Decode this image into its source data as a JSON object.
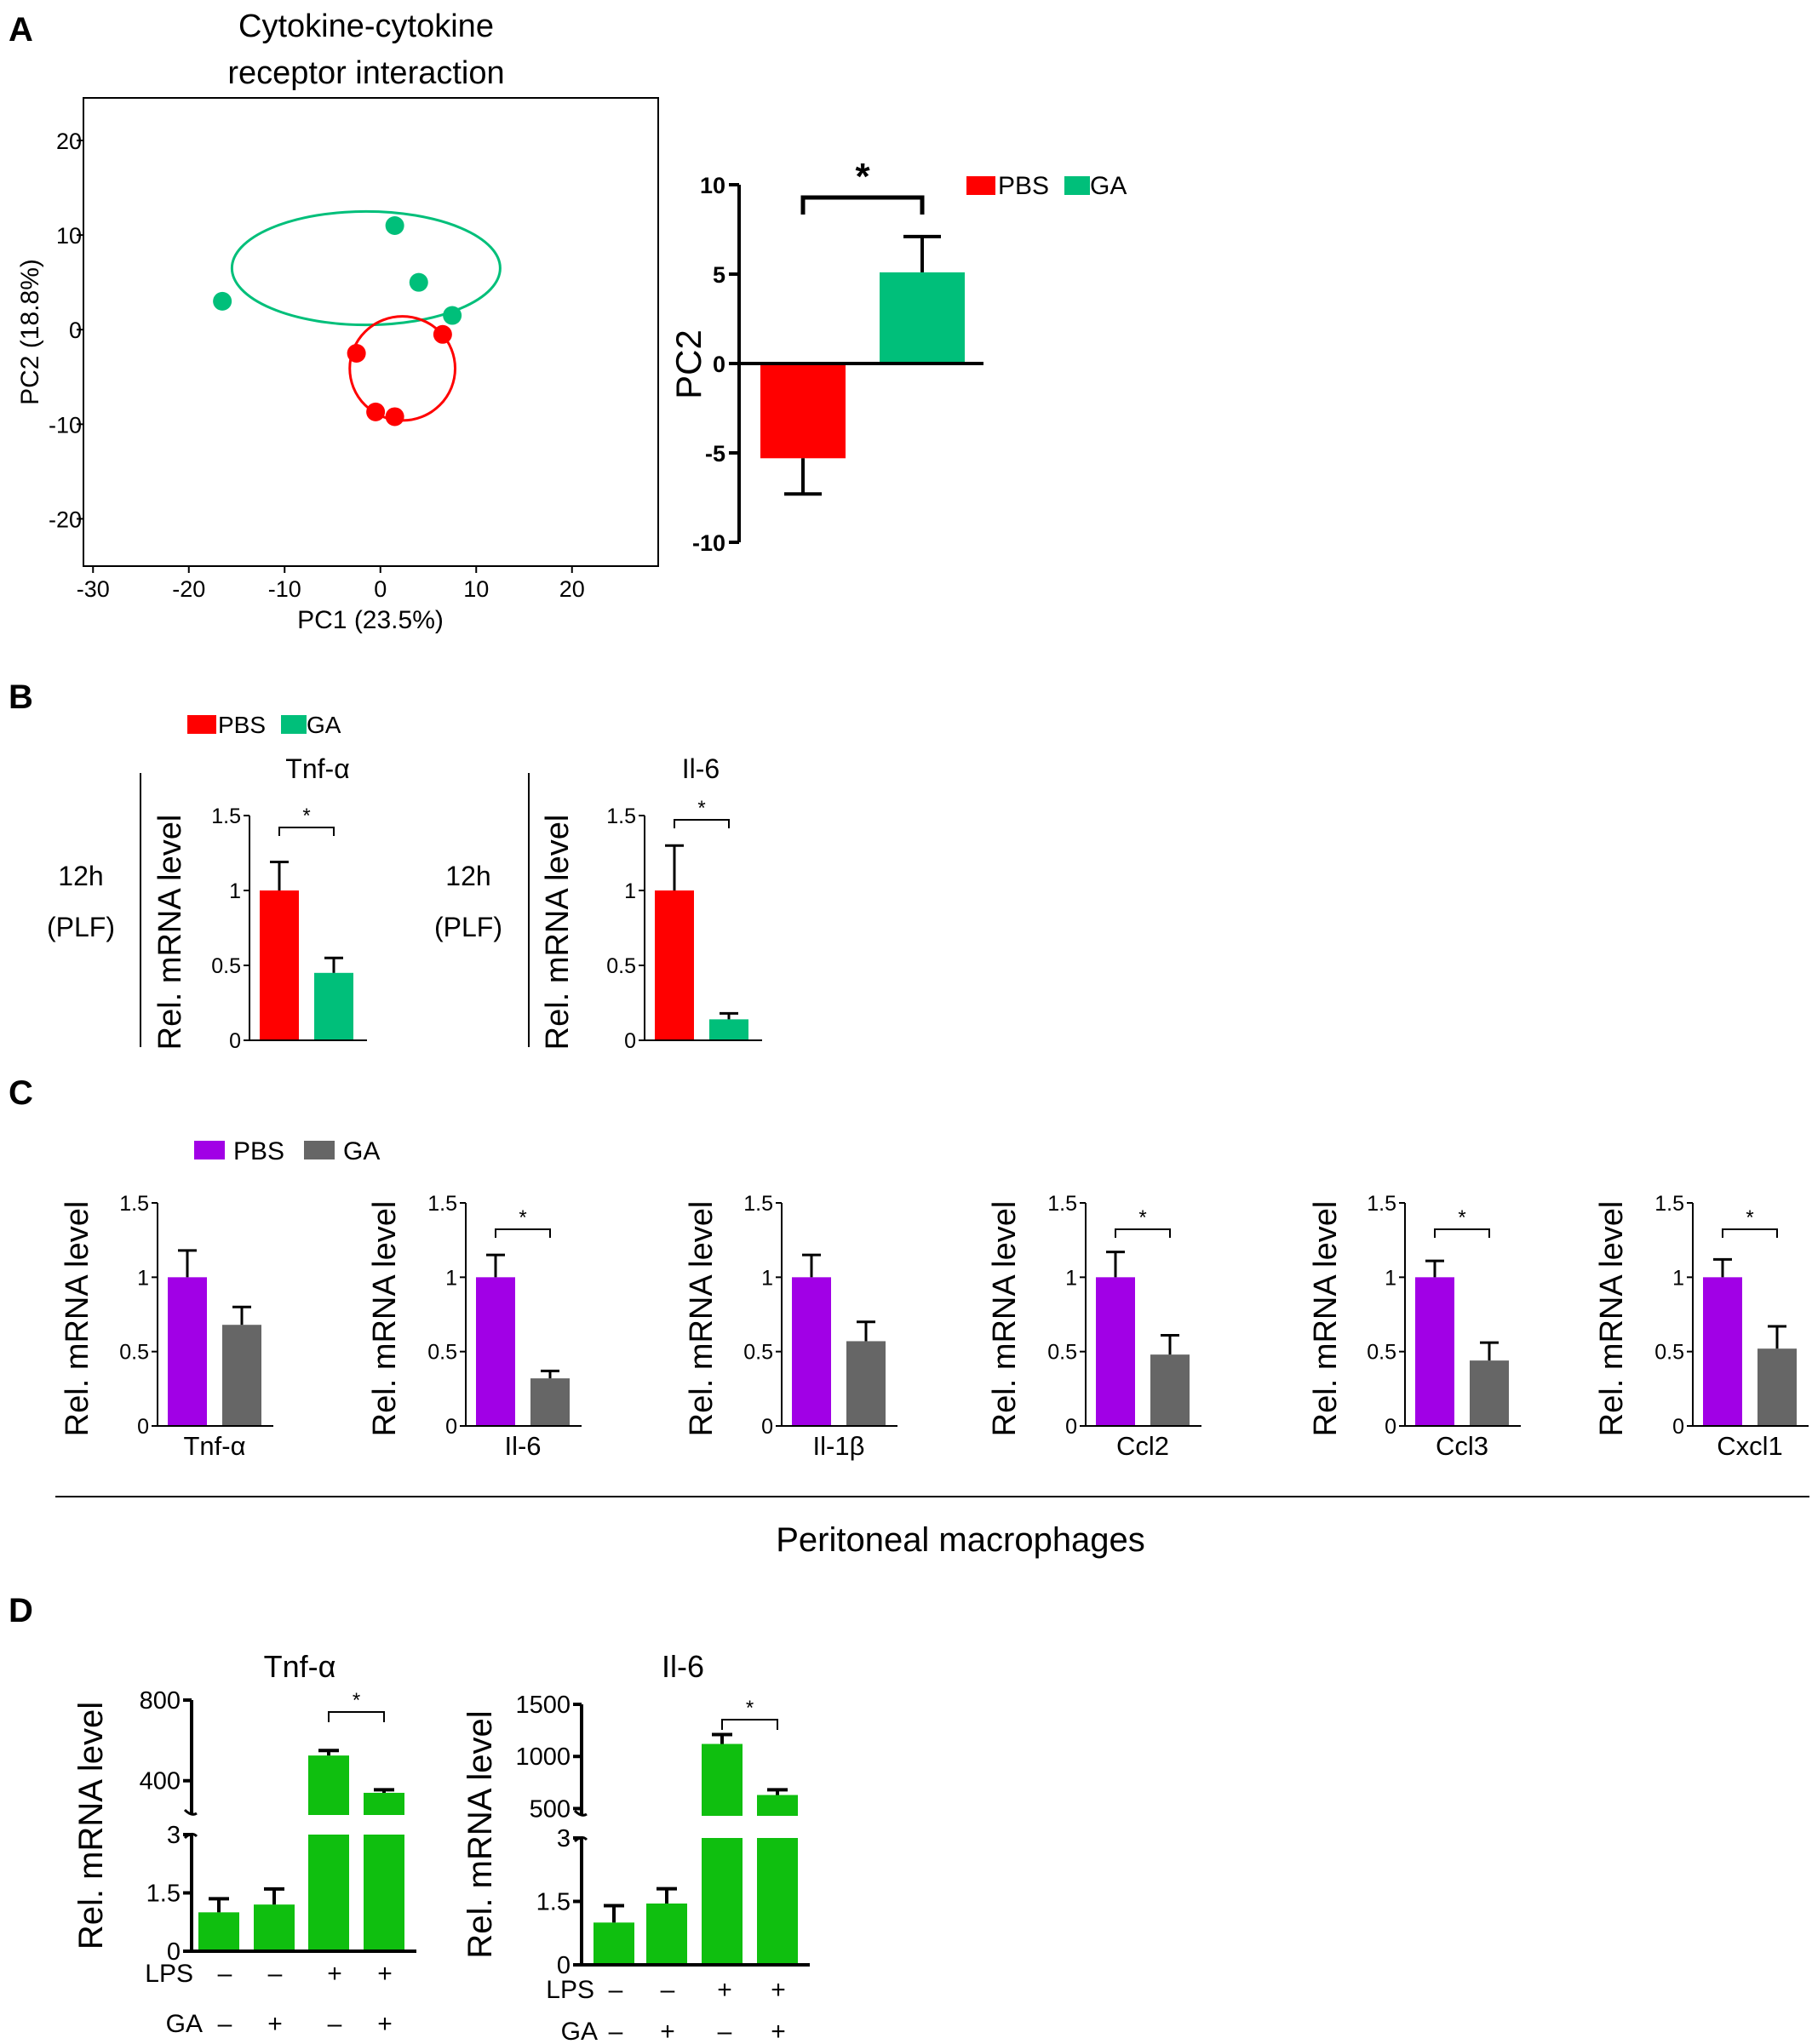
{
  "colors": {
    "pbs_red": "#ff0000",
    "ga_teal": "#00bf7a",
    "pbs_purple": "#a100e6",
    "ga_gray": "#666666",
    "lps_green": "#0fbf0f",
    "axis": "#000000"
  },
  "panels": {
    "A": {
      "letter": "A",
      "pca": {
        "title_line1": "Cytokine-cytokine",
        "title_line2": "receptor interaction",
        "xlabel": "PC1 (23.5%)",
        "ylabel": "PC2 (18.8%)"
      },
      "bar": {
        "ylabel": "PC2",
        "sig": "*"
      },
      "legend": [
        "PBS",
        "GA"
      ]
    },
    "B": {
      "letter": "B",
      "legend": [
        "PBS",
        "GA"
      ],
      "row_label_1": "12h",
      "row_label_2": "(PLF)",
      "ylabel": "Rel. mRNA level"
    },
    "C": {
      "letter": "C",
      "legend": [
        "PBS",
        "GA"
      ],
      "ylabel": "Rel. mRNA level",
      "footer": "Peritoneal macrophages"
    },
    "D": {
      "letter": "D",
      "ylabel": "Rel. mRNA level",
      "row1_label": "LPS",
      "row2_label": "GA",
      "lps_signs": [
        "–",
        "–",
        "+",
        "+"
      ],
      "ga_signs": [
        "–",
        "+",
        "–",
        "+"
      ]
    }
  },
  "chart_data": [
    {
      "id": "A-pca",
      "type": "scatter",
      "title": "Cytokine-cytokine receptor interaction",
      "xlabel": "PC1 (23.5%)",
      "ylabel": "PC2 (18.8%)",
      "xlim": [
        -31,
        29
      ],
      "ylim": [
        -25,
        24.5
      ],
      "xticks": [
        -30,
        -20,
        -10,
        0,
        10,
        20
      ],
      "yticks": [
        -20,
        -10,
        0,
        10,
        20
      ],
      "series": [
        {
          "name": "GA",
          "color": "#00bf7a",
          "points": [
            [
              1.5,
              11
            ],
            [
              4,
              5
            ],
            [
              7.5,
              1.5
            ],
            [
              -16.5,
              3
            ]
          ],
          "ellipse": {
            "cx": -1.5,
            "cy": 6.5,
            "rx": 14,
            "ry": 6
          }
        },
        {
          "name": "PBS",
          "color": "#ff0000",
          "points": [
            [
              -2.5,
              -2.5
            ],
            [
              6.5,
              -0.5
            ],
            [
              -0.5,
              -8.7
            ],
            [
              1.5,
              -9.2
            ]
          ],
          "ellipse": {
            "cx": 2.3,
            "cy": -4.1,
            "rx": 5.5,
            "ry": 5.5
          }
        }
      ]
    },
    {
      "id": "A-bar",
      "type": "bar",
      "ylabel": "PC2",
      "ylim": [
        -10,
        10
      ],
      "yticks": [
        10,
        5,
        0,
        -5,
        -10
      ],
      "categories": [
        "PBS",
        "GA"
      ],
      "values": [
        -5.3,
        5.1
      ],
      "errors": [
        2.0,
        2.0
      ],
      "colors": [
        "#ff0000",
        "#00bf7a"
      ],
      "significance": "*"
    },
    {
      "id": "B-tnf",
      "type": "bar",
      "title": "Tnf-α",
      "ylabel": "Rel. mRNA level",
      "ylim": [
        0,
        1.5
      ],
      "yticks": [
        "0",
        "0.5",
        "1",
        "1.5"
      ],
      "categories": [
        "PBS",
        "GA"
      ],
      "values": [
        1.0,
        0.45
      ],
      "errors": [
        0.19,
        0.1
      ],
      "colors": [
        "#ff0000",
        "#00bf7a"
      ],
      "significance": "*"
    },
    {
      "id": "B-il6",
      "type": "bar",
      "title": "Il-6",
      "ylabel": "Rel. mRNA level",
      "ylim": [
        0,
        1.5
      ],
      "yticks": [
        "0",
        "0.5",
        "1",
        "1.5"
      ],
      "categories": [
        "PBS",
        "GA"
      ],
      "values": [
        1.0,
        0.14
      ],
      "errors": [
        0.3,
        0.04
      ],
      "colors": [
        "#ff0000",
        "#00bf7a"
      ],
      "significance": "*"
    },
    {
      "id": "C-tnf",
      "type": "bar",
      "xlabel": "Tnf-α",
      "ylabel": "Rel. mRNA level",
      "ylim": [
        0,
        1.5
      ],
      "yticks": [
        "0",
        "0.5",
        "1",
        "1.5"
      ],
      "categories": [
        "PBS",
        "GA"
      ],
      "values": [
        1.0,
        0.68
      ],
      "errors": [
        0.18,
        0.12
      ],
      "colors": [
        "#a100e6",
        "#666666"
      ],
      "significance": ""
    },
    {
      "id": "C-il6",
      "type": "bar",
      "xlabel": "Il-6",
      "ylabel": "Rel. mRNA level",
      "ylim": [
        0,
        1.5
      ],
      "yticks": [
        "0",
        "0.5",
        "1",
        "1.5"
      ],
      "categories": [
        "PBS",
        "GA"
      ],
      "values": [
        1.0,
        0.32
      ],
      "errors": [
        0.15,
        0.05
      ],
      "colors": [
        "#a100e6",
        "#666666"
      ],
      "significance": "*"
    },
    {
      "id": "C-il1b",
      "type": "bar",
      "xlabel": "Il-1β",
      "ylabel": "Rel. mRNA level",
      "ylim": [
        0,
        1.5
      ],
      "yticks": [
        "0",
        "0.5",
        "1",
        "1.5"
      ],
      "categories": [
        "PBS",
        "GA"
      ],
      "values": [
        1.0,
        0.57
      ],
      "errors": [
        0.15,
        0.13
      ],
      "colors": [
        "#a100e6",
        "#666666"
      ],
      "significance": ""
    },
    {
      "id": "C-ccl2",
      "type": "bar",
      "xlabel": "Ccl2",
      "ylabel": "Rel. mRNA level",
      "ylim": [
        0,
        1.5
      ],
      "yticks": [
        "0",
        "0.5",
        "1",
        "1.5"
      ],
      "categories": [
        "PBS",
        "GA"
      ],
      "values": [
        1.0,
        0.48
      ],
      "errors": [
        0.17,
        0.13
      ],
      "colors": [
        "#a100e6",
        "#666666"
      ],
      "significance": "*"
    },
    {
      "id": "C-ccl3",
      "type": "bar",
      "xlabel": "Ccl3",
      "ylabel": "Rel. mRNA level",
      "ylim": [
        0,
        1.5
      ],
      "yticks": [
        "0",
        "0.5",
        "1",
        "1.5"
      ],
      "categories": [
        "PBS",
        "GA"
      ],
      "values": [
        1.0,
        0.44
      ],
      "errors": [
        0.11,
        0.12
      ],
      "colors": [
        "#a100e6",
        "#666666"
      ],
      "significance": "*"
    },
    {
      "id": "C-cxcl1",
      "type": "bar",
      "xlabel": "Cxcl1",
      "ylabel": "Rel. mRNA level",
      "ylim": [
        0,
        1.5
      ],
      "yticks": [
        "0",
        "0.5",
        "1",
        "1.5"
      ],
      "categories": [
        "PBS",
        "GA"
      ],
      "values": [
        1.0,
        0.52
      ],
      "errors": [
        0.12,
        0.15
      ],
      "colors": [
        "#a100e6",
        "#666666"
      ],
      "significance": "*"
    },
    {
      "id": "D-tnf",
      "type": "bar",
      "title": "Tnf-α",
      "ylabel": "Rel. mRNA level",
      "broken_axis": true,
      "lower_ylim": [
        0,
        3
      ],
      "lower_yticks": [
        "0",
        "1.5",
        "3"
      ],
      "upper_yticks": [
        {
          "label": "400",
          "value": 400
        },
        {
          "label": "800",
          "value": 800
        }
      ],
      "upper_ylim": [
        230,
        800
      ],
      "categories": [
        "LPS– GA–",
        "LPS– GA+",
        "LPS+ GA–",
        "LPS+ GA+"
      ],
      "values": [
        1.0,
        1.2,
        525,
        340
      ],
      "errors": [
        0.35,
        0.4,
        25,
        15
      ],
      "colors": [
        "#0fbf0f",
        "#0fbf0f",
        "#0fbf0f",
        "#0fbf0f"
      ],
      "significance": "*"
    },
    {
      "id": "D-il6",
      "type": "bar",
      "title": "Il-6",
      "ylabel": "Rel. mRNA level",
      "broken_axis": true,
      "lower_ylim": [
        0,
        3
      ],
      "lower_yticks": [
        "0",
        "1.5",
        "3"
      ],
      "upper_yticks": [
        {
          "label": "500",
          "value": 500
        },
        {
          "label": "1000",
          "value": 1000
        },
        {
          "label": "1500",
          "value": 1500
        }
      ],
      "upper_ylim": [
        430,
        1500
      ],
      "categories": [
        "LPS– GA–",
        "LPS– GA+",
        "LPS+ GA–",
        "LPS+ GA+"
      ],
      "values": [
        1.0,
        1.45,
        1120,
        630
      ],
      "errors": [
        0.4,
        0.35,
        90,
        50
      ],
      "colors": [
        "#0fbf0f",
        "#0fbf0f",
        "#0fbf0f",
        "#0fbf0f"
      ],
      "significance": "*"
    }
  ]
}
